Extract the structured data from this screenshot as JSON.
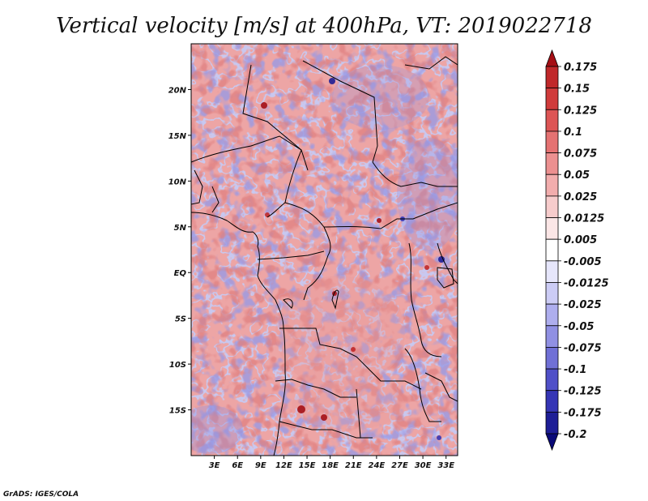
{
  "chart_data": {
    "type": "heatmap",
    "title": "Vertical velocity [m/s] at 400hPa, VT: 2019022718",
    "x_ticks": [
      "3E",
      "6E",
      "9E",
      "12E",
      "15E",
      "18E",
      "21E",
      "24E",
      "27E",
      "30E",
      "33E"
    ],
    "x_tick_values": [
      3,
      6,
      9,
      12,
      15,
      18,
      21,
      24,
      27,
      30,
      33
    ],
    "y_ticks": [
      "20N",
      "15N",
      "10N",
      "5N",
      "EQ",
      "5S",
      "10S",
      "15S"
    ],
    "y_tick_values": [
      20,
      15,
      10,
      5,
      0,
      -5,
      -10,
      -15
    ],
    "xlim": [
      0,
      34.5
    ],
    "ylim": [
      -20,
      25
    ],
    "colorbar_labels": [
      "0.175",
      "0.15",
      "0.125",
      "0.1",
      "0.075",
      "0.05",
      "0.025",
      "0.0125",
      "0.005",
      "-0.005",
      "-0.0125",
      "-0.025",
      "-0.05",
      "-0.075",
      "-0.1",
      "-0.125",
      "-0.175",
      "-0.2"
    ],
    "colorbar_colors": [
      "#a50f15",
      "#c0282a",
      "#d03b3b",
      "#dd5555",
      "#e57272",
      "#ec9090",
      "#f2adad",
      "#f7cccc",
      "#fbe6e6",
      "#ffffff",
      "#e6e6fb",
      "#ccccf5",
      "#aeaeee",
      "#9090e3",
      "#7070d6",
      "#5050c8",
      "#3535b5",
      "#1e1e96",
      "#0a0a78"
    ],
    "credit": "GrADS: IGES/COLA"
  }
}
